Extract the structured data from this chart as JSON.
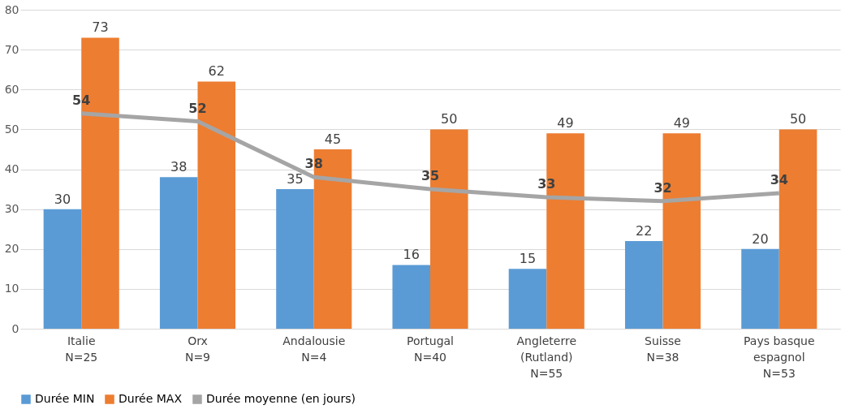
{
  "chart_data": {
    "type": "bar",
    "categories": [
      "Italie",
      "Orx",
      "Andalousie",
      "Portugal",
      "Angleterre\n(Rutland)",
      "Suisse",
      "Pays basque\nespagnol"
    ],
    "series": [
      {
        "name": "Durée MIN",
        "color": "#5b9bd5",
        "values": [
          30,
          38,
          35,
          16,
          15,
          22,
          20
        ]
      },
      {
        "name": "Durée MAX",
        "color": "#ed7d31",
        "values": [
          73,
          62,
          45,
          50,
          49,
          49,
          50
        ]
      },
      {
        "name": "Durée moyenne (en jours)",
        "type": "line",
        "color": "#a5a5a5",
        "values": [
          54,
          52,
          38,
          35,
          33,
          32,
          34
        ]
      }
    ],
    "annotations": [
      "N=25",
      "N=9",
      "N=4",
      "N=40",
      "N=55",
      "N=38",
      "N=53"
    ],
    "ylim": [
      0,
      80
    ],
    "yticks": [
      0,
      10,
      20,
      30,
      40,
      50,
      60,
      70,
      80
    ],
    "grid": "y",
    "legend": "bottom",
    "data_labels": true
  }
}
